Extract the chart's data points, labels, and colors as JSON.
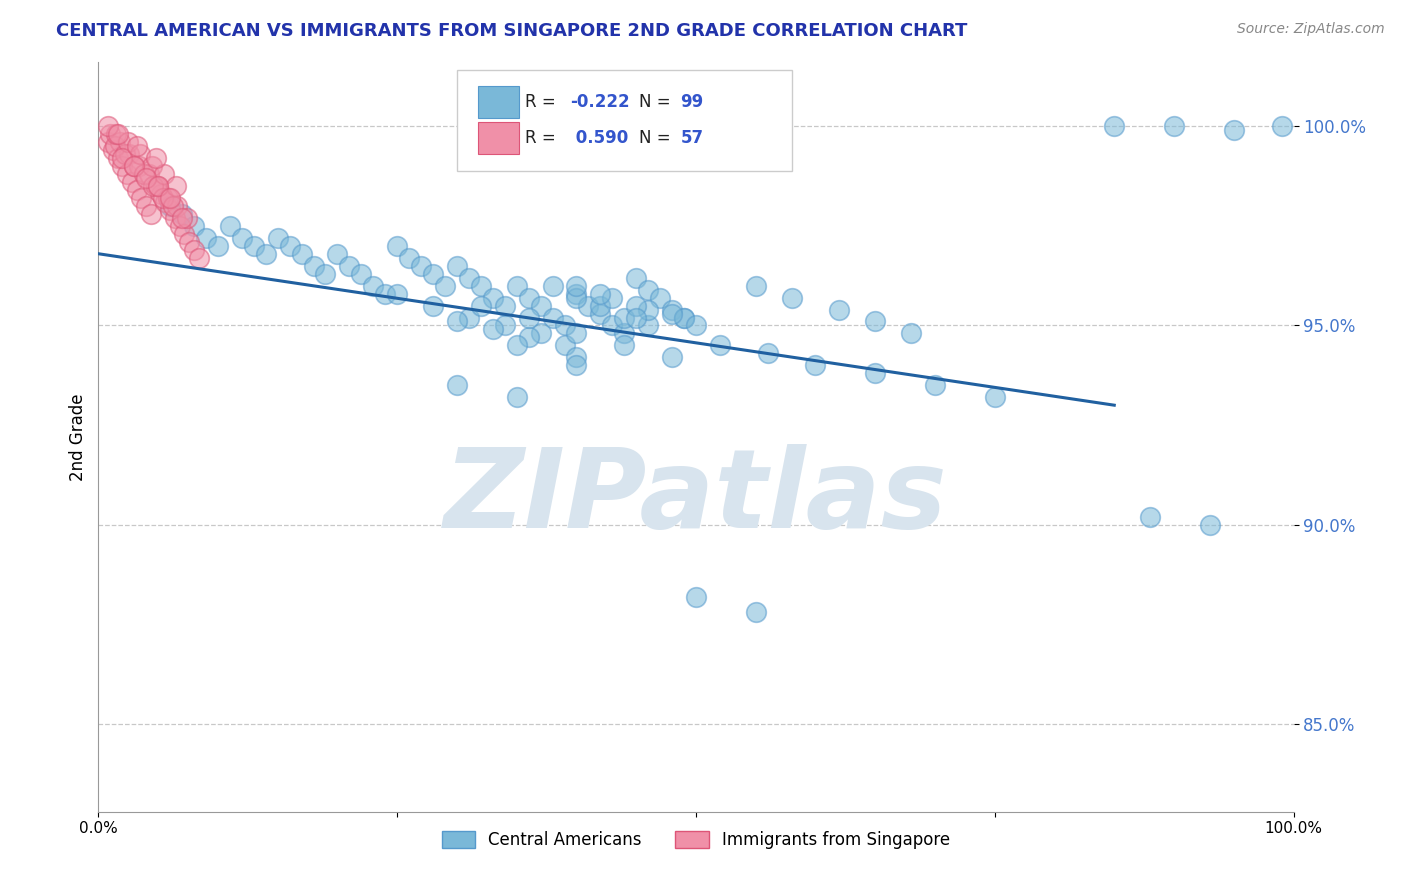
{
  "title": "CENTRAL AMERICAN VS IMMIGRANTS FROM SINGAPORE 2ND GRADE CORRELATION CHART",
  "source_text": "Source: ZipAtlas.com",
  "ylabel": "2nd Grade",
  "x_min": 0.0,
  "x_max": 1.0,
  "y_min": 0.828,
  "y_max": 1.016,
  "y_ticks": [
    0.85,
    0.9,
    0.95,
    1.0
  ],
  "y_tick_labels": [
    "85.0%",
    "90.0%",
    "95.0%",
    "100.0%"
  ],
  "x_ticks": [
    0.0,
    0.25,
    0.5,
    0.75,
    1.0
  ],
  "x_tick_labels": [
    "0.0%",
    "",
    "",
    "",
    "100.0%"
  ],
  "blue_color": "#7ab8d8",
  "blue_edge_color": "#5599cc",
  "pink_color": "#f090a8",
  "pink_edge_color": "#dd5577",
  "line_color": "#2060a0",
  "watermark": "ZIPatlas",
  "watermark_color": "#d8e4ee",
  "blue_scatter_x": [
    0.06,
    0.07,
    0.08,
    0.09,
    0.1,
    0.11,
    0.12,
    0.13,
    0.14,
    0.15,
    0.16,
    0.17,
    0.18,
    0.19,
    0.2,
    0.21,
    0.22,
    0.23,
    0.24,
    0.25,
    0.26,
    0.27,
    0.28,
    0.29,
    0.3,
    0.31,
    0.32,
    0.33,
    0.34,
    0.35,
    0.36,
    0.37,
    0.38,
    0.39,
    0.4,
    0.41,
    0.42,
    0.43,
    0.44,
    0.45,
    0.46,
    0.47,
    0.48,
    0.49,
    0.38,
    0.4,
    0.42,
    0.44,
    0.46,
    0.25,
    0.28,
    0.31,
    0.34,
    0.37,
    0.4,
    0.43,
    0.46,
    0.49,
    0.3,
    0.33,
    0.36,
    0.39,
    0.42,
    0.45,
    0.48,
    0.55,
    0.58,
    0.62,
    0.65,
    0.68,
    0.52,
    0.56,
    0.6,
    0.65,
    0.35,
    0.4,
    0.45,
    0.5,
    0.3,
    0.35,
    0.4,
    0.85,
    0.9,
    0.95,
    0.99,
    0.7,
    0.75,
    0.88,
    0.93,
    0.5,
    0.55,
    0.32,
    0.36,
    0.4,
    0.44,
    0.48
  ],
  "blue_scatter_y": [
    0.98,
    0.978,
    0.975,
    0.972,
    0.97,
    0.975,
    0.972,
    0.97,
    0.968,
    0.972,
    0.97,
    0.968,
    0.965,
    0.963,
    0.968,
    0.965,
    0.963,
    0.96,
    0.958,
    0.97,
    0.967,
    0.965,
    0.963,
    0.96,
    0.965,
    0.962,
    0.96,
    0.957,
    0.955,
    0.96,
    0.957,
    0.955,
    0.952,
    0.95,
    0.958,
    0.955,
    0.953,
    0.95,
    0.948,
    0.962,
    0.959,
    0.957,
    0.954,
    0.952,
    0.96,
    0.957,
    0.955,
    0.952,
    0.95,
    0.958,
    0.955,
    0.952,
    0.95,
    0.948,
    0.96,
    0.957,
    0.954,
    0.952,
    0.951,
    0.949,
    0.947,
    0.945,
    0.958,
    0.955,
    0.953,
    0.96,
    0.957,
    0.954,
    0.951,
    0.948,
    0.945,
    0.943,
    0.94,
    0.938,
    0.945,
    0.942,
    0.952,
    0.95,
    0.935,
    0.932,
    0.94,
    1.0,
    1.0,
    0.999,
    1.0,
    0.935,
    0.932,
    0.902,
    0.9,
    0.882,
    0.878,
    0.955,
    0.952,
    0.948,
    0.945,
    0.942
  ],
  "pink_scatter_x": [
    0.008,
    0.012,
    0.016,
    0.02,
    0.024,
    0.028,
    0.032,
    0.036,
    0.04,
    0.044,
    0.048,
    0.052,
    0.056,
    0.06,
    0.064,
    0.068,
    0.072,
    0.076,
    0.08,
    0.084,
    0.01,
    0.018,
    0.026,
    0.034,
    0.042,
    0.05,
    0.058,
    0.066,
    0.074,
    0.014,
    0.022,
    0.03,
    0.038,
    0.046,
    0.054,
    0.062,
    0.07,
    0.015,
    0.025,
    0.035,
    0.045,
    0.055,
    0.065,
    0.02,
    0.03,
    0.04,
    0.05,
    0.06,
    0.008,
    0.016,
    0.032,
    0.048
  ],
  "pink_scatter_y": [
    0.996,
    0.994,
    0.992,
    0.99,
    0.988,
    0.986,
    0.984,
    0.982,
    0.98,
    0.978,
    0.985,
    0.983,
    0.981,
    0.979,
    0.977,
    0.975,
    0.973,
    0.971,
    0.969,
    0.967,
    0.998,
    0.996,
    0.993,
    0.99,
    0.988,
    0.985,
    0.982,
    0.98,
    0.977,
    0.995,
    0.993,
    0.99,
    0.988,
    0.985,
    0.982,
    0.98,
    0.977,
    0.998,
    0.996,
    0.993,
    0.99,
    0.988,
    0.985,
    0.992,
    0.99,
    0.987,
    0.985,
    0.982,
    1.0,
    0.998,
    0.995,
    0.992
  ],
  "trend_x_start": 0.0,
  "trend_x_end": 0.85,
  "trend_y_start": 0.968,
  "trend_y_end": 0.93
}
